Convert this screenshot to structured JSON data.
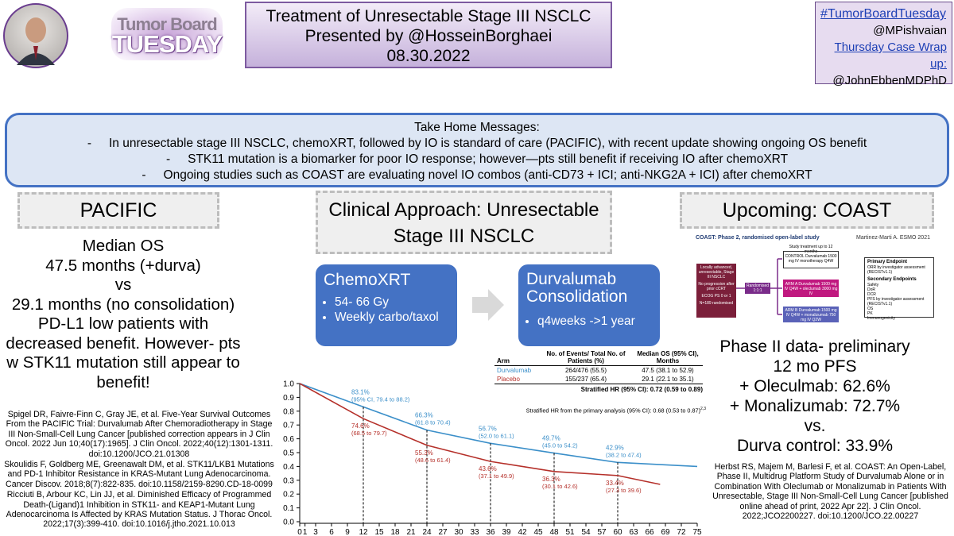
{
  "header": {
    "logo": [
      "Tumor Board",
      "TUESDAY"
    ],
    "title_lines": [
      "Treatment of Unresectable Stage III NSCLC",
      "Presented by @HosseinBorghaei",
      "08.30.2022"
    ],
    "social": [
      "#TumorBoardTuesday",
      "@MPishvaian",
      "Thursday Case Wrap up:",
      "@JohnEbbenMDPhD"
    ]
  },
  "take_home": {
    "heading": "Take Home Messages:",
    "items": [
      "In unresectable stage III NSCLC, chemoXRT, followed by IO is standard of care (PACIFIC), with recent update showing ongoing OS benefit",
      "STK11 mutation is a biomarker for poor IO response; however—pts still benefit if receiving IO after chemoXRT",
      "Ongoing studies such as COAST are evaluating novel IO combos (anti-CD73 + ICI; anti-NKG2A + ICI) after chemoXRT"
    ]
  },
  "pacific": {
    "heading": "PACIFIC",
    "summary": [
      "Median OS",
      "47.5 months (+durva)",
      "vs",
      "29.1 months (no consolidation)",
      "PD-L1 low patients with decreased benefit. However- pts w STK11 mutation still appear to benefit!"
    ],
    "references": [
      "Spigel DR, Faivre-Finn C, Gray JE, et al. Five-Year Survival Outcomes From the PACIFIC Trial: Durvalumab After Chemoradiotherapy in Stage III Non-Small-Cell Lung Cancer [published correction appears in J Clin Oncol. 2022 Jun 10;40(17):1965]. J Clin Oncol. 2022;40(12):1301-1311. doi:10.1200/JCO.21.01308",
      "Skoulidis F, Goldberg ME, Greenawalt DM, et al. STK11/LKB1 Mutations and PD-1 Inhibitor Resistance in KRAS-Mutant Lung Adenocarcinoma. Cancer Discov. 2018;8(7):822-835. doi:10.1158/2159-8290.CD-18-0099",
      "Ricciuti B, Arbour KC, Lin JJ, et al. Diminished Efficacy of Programmed Death-(Ligand)1 Inhibition in STK11- and KEAP1-Mutant Lung Adenocarcinoma Is Affected by KRAS Mutation Status. J Thorac Oncol. 2022;17(3):399-410. doi:10.1016/j.jtho.2021.10.013"
    ]
  },
  "approach": {
    "heading": "Clinical Approach: Unresectable Stage III NSCLC",
    "steps": [
      {
        "title": "ChemoXRT",
        "bullets": [
          "54- 66 Gy",
          "Weekly carbo/taxol"
        ]
      },
      {
        "title": "Durvalumab Consolidation",
        "bullets": [
          "q4weeks ->1 year"
        ]
      }
    ]
  },
  "survival_table": {
    "headers": [
      "Arm",
      "No. of Events/ Total No. of Patients (%)",
      "Median OS (95% CI), Months"
    ],
    "rows": [
      [
        "Durvalumab",
        "264/476 (55.5)",
        "47.5 (38.1 to 52.9)"
      ],
      [
        "Placebo",
        "155/237 (65.4)",
        "29.1 (22.1 to 35.1)"
      ]
    ],
    "hr": "Stratified HR (95% CI): 0.72 (0.59 to 0.89)",
    "hr_primary": "Stratified HR from the primary analysis (95% CI): 0.68 (0.53 to 0.87)",
    "hr_primary_refs": "2,3"
  },
  "chart_data": {
    "type": "line",
    "xlim": [
      0,
      75
    ],
    "xticks": [
      0,
      1,
      3,
      6,
      9,
      12,
      15,
      18,
      21,
      24,
      27,
      30,
      33,
      36,
      39,
      42,
      45,
      48,
      51,
      54,
      57,
      60,
      63,
      66,
      69,
      72,
      75
    ],
    "ylim": [
      0,
      1
    ],
    "yticks": [
      {
        "value": 0,
        "label": "0.0"
      },
      {
        "value": 0.1,
        "label": "0.1"
      },
      {
        "value": 0.2,
        "label": "0.2"
      },
      {
        "value": 0.3,
        "label": "0.3"
      },
      {
        "value": 0.4,
        "label": "0.4"
      },
      {
        "value": 0.5,
        "label": "0.5"
      },
      {
        "value": 0.6,
        "label": "0.6"
      },
      {
        "value": 0.7,
        "label": "0.7"
      },
      {
        "value": 0.8,
        "label": "0.8"
      },
      {
        "value": 0.9,
        "label": "0.9"
      },
      {
        "value": 1,
        "label": "1.0"
      }
    ],
    "series": [
      {
        "name": "Durvalumab",
        "color": "#3b8fc9",
        "x": [
          0,
          12,
          24,
          36,
          48,
          60,
          75
        ],
        "values": [
          1,
          0.831,
          0.663,
          0.567,
          0.497,
          0.429,
          0.4
        ],
        "value_labels": [
          null,
          "83.1%",
          "66.3%",
          "56.7%",
          "49.7%",
          "42.9%",
          null
        ],
        "ci_labels": [
          null,
          "(95% CI, 79.4 to 88.2)",
          "(61.8 to 70.4)",
          "(52.0 to 61.1)",
          "(45.0 to 54.2)",
          "(38.2 to 47.4)",
          null
        ]
      },
      {
        "name": "Placebo",
        "color": "#b5302a",
        "x": [
          0,
          12,
          24,
          36,
          48,
          60,
          68
        ],
        "values": [
          1,
          0.746,
          0.553,
          0.436,
          0.363,
          0.334,
          0.27
        ],
        "value_labels": [
          null,
          "74.6%",
          "55.3%",
          "43.6%",
          "36.3%",
          "33.4%",
          null
        ],
        "ci_labels": [
          null,
          "(68.5 to 79.7)",
          "(48.6 to 61.4)",
          "(37.1 to 49.9)",
          "(30.1 to 42.6)",
          "(27.3 to 39.6)",
          null
        ]
      }
    ]
  },
  "coast": {
    "heading": "Upcoming: COAST",
    "figure_title": "COAST: Phase 2, randomised open-label study",
    "figure_source": "Martinez-Marti A. ESMO 2021",
    "population": [
      "Locally advanced, unresectable, Stage III NSCLC",
      "No progression after prior cCRT",
      "ECOG PS 0 or 1",
      "N=189 randomised"
    ],
    "randomised": "Randomised 1:1:1",
    "treatment_label": "Study treatment up to 12 months",
    "arms": [
      "CONTROL Durvalumab 1500 mg IV monotherapy Q4W",
      "ARM A Durvalumab 1500 mg IV Q4W + oleclumab 3000 mg IV",
      "ARM B Durvalumab 1500 mg IV Q4W + monalizumab 750 mg IV Q2W"
    ],
    "endpoints": [
      "Primary Endpoint",
      "ORR by investigator assessment (RECISTv1.1)",
      "Secondary Endpoints",
      "Safety",
      "DoR",
      "DCR",
      "PFS by investigator assessment (RECISTv1.1)",
      "OS",
      "PK",
      "Immunogenicity"
    ],
    "results": [
      "Phase II data- preliminary",
      "12 mo PFS",
      "+ Oleculmab: 62.6%",
      "+ Monalizumab: 72.7%",
      "vs.",
      "Durva control: 33.9%"
    ],
    "reference": "Herbst RS, Majem M, Barlesi F, et al. COAST: An Open-Label, Phase II, Multidrug Platform Study of Durvalumab Alone or in Combination With Oleclumab or Monalizumab in Patients With Unresectable, Stage III Non-Small-Cell Lung Cancer [published online ahead of print, 2022 Apr 22]. J Clin Oncol. 2022;JCO2200227. doi:10.1200/JCO.22.00227"
  }
}
